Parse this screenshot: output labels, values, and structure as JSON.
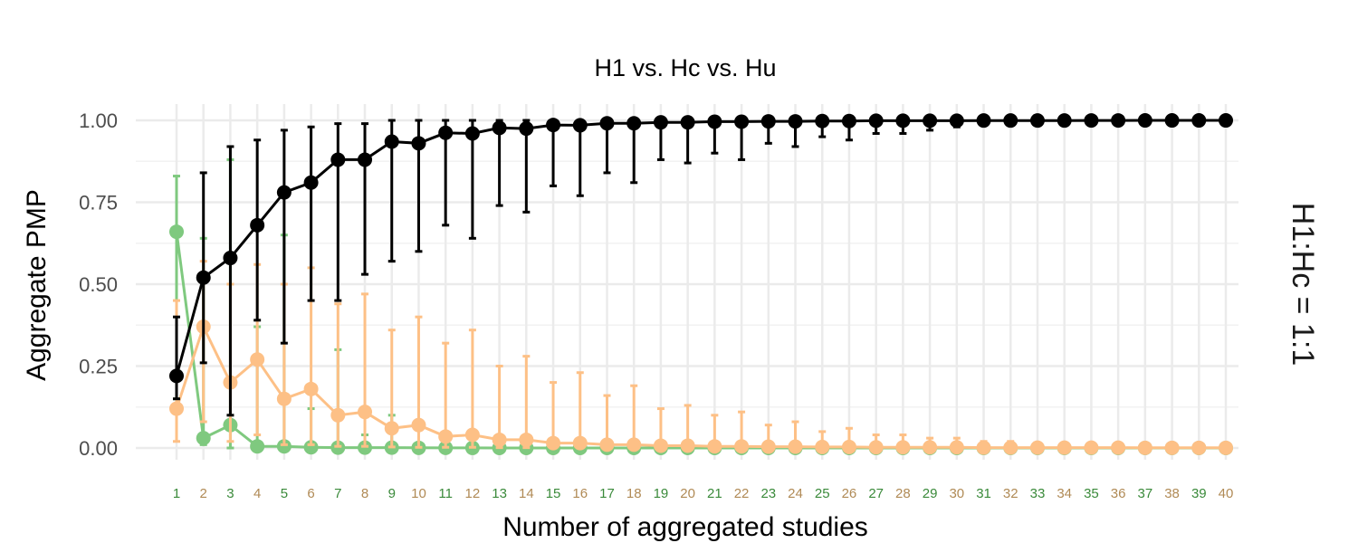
{
  "chart_data": {
    "type": "line",
    "title": "H1 vs. Hc vs. Hu",
    "xlabel": "Number of aggregated studies",
    "ylabel": "Aggregate PMP",
    "facet_label": "H1:Hc = 1:1",
    "ylim": [
      0,
      1
    ],
    "xlim": [
      1,
      40
    ],
    "grid": true,
    "legend": "none",
    "y_ticks": [
      "0.00",
      "0.25",
      "0.50",
      "0.75",
      "1.00"
    ],
    "y_tick_values": [
      0,
      0.25,
      0.5,
      0.75,
      1.0
    ],
    "x": [
      "1",
      "2",
      "3",
      "4",
      "5",
      "6",
      "7",
      "8",
      "9",
      "10",
      "11",
      "12",
      "13",
      "14",
      "15",
      "16",
      "17",
      "18",
      "19",
      "20",
      "21",
      "22",
      "23",
      "24",
      "25",
      "26",
      "27",
      "28",
      "29",
      "30",
      "31",
      "32",
      "33",
      "34",
      "35",
      "36",
      "37",
      "38",
      "39",
      "40"
    ],
    "x_tick_colors": [
      "#3a8a3a",
      "#b08a55"
    ],
    "series": [
      {
        "color": "#7fc97f",
        "values": [
          0.66,
          0.03,
          0.07,
          0.005,
          0.005,
          0.002,
          0.001,
          0.001,
          0.001,
          0.0005,
          0.0003,
          0.0002,
          0.0001,
          0.0001,
          0,
          0,
          0,
          0,
          0,
          0,
          0,
          0,
          0,
          0,
          0,
          0,
          0,
          0,
          0,
          0,
          0,
          0,
          0,
          0,
          0,
          0,
          0,
          0,
          0,
          0
        ],
        "lower": [
          0.15,
          0.01,
          0.0,
          0.0,
          0.0,
          0.0,
          0.0,
          0.0,
          0.0,
          0,
          0,
          0,
          0,
          0,
          0,
          0,
          0,
          0,
          0,
          0,
          0,
          0,
          0,
          0,
          0,
          0,
          0,
          0,
          0,
          0,
          0,
          0,
          0,
          0,
          0,
          0,
          0,
          0,
          0,
          0
        ],
        "upper": [
          0.83,
          0.64,
          0.88,
          0.37,
          0.65,
          0.12,
          0.3,
          0.04,
          0.1,
          0.01,
          0.005,
          0.003,
          0.002,
          0.001,
          0.001,
          0.001,
          0,
          0,
          0,
          0,
          0,
          0,
          0,
          0,
          0,
          0,
          0,
          0,
          0,
          0,
          0,
          0,
          0,
          0,
          0,
          0,
          0,
          0,
          0,
          0
        ]
      },
      {
        "color": "#fdc086",
        "values": [
          0.12,
          0.37,
          0.2,
          0.27,
          0.15,
          0.18,
          0.1,
          0.11,
          0.06,
          0.07,
          0.035,
          0.04,
          0.025,
          0.025,
          0.015,
          0.015,
          0.01,
          0.01,
          0.007,
          0.007,
          0.005,
          0.005,
          0.004,
          0.004,
          0.003,
          0.003,
          0.002,
          0.002,
          0.002,
          0.002,
          0.001,
          0.001,
          0.001,
          0.001,
          0.001,
          0.001,
          0.0005,
          0.0005,
          0.0005,
          0.0005
        ],
        "lower": [
          0.02,
          0.08,
          0.02,
          0.04,
          0.01,
          0.01,
          0.005,
          0.005,
          0.003,
          0.002,
          0.002,
          0.002,
          0.001,
          0.001,
          0.001,
          0,
          0,
          0,
          0,
          0,
          0,
          0,
          0,
          0,
          0,
          0,
          0,
          0,
          0,
          0,
          0,
          0,
          0,
          0,
          0,
          0,
          0,
          0,
          0,
          0
        ],
        "upper": [
          0.45,
          0.57,
          0.5,
          0.56,
          0.5,
          0.55,
          0.44,
          0.47,
          0.36,
          0.4,
          0.32,
          0.36,
          0.25,
          0.28,
          0.2,
          0.23,
          0.16,
          0.19,
          0.12,
          0.13,
          0.1,
          0.11,
          0.07,
          0.08,
          0.05,
          0.06,
          0.04,
          0.04,
          0.03,
          0.03,
          0.02,
          0.02,
          0.015,
          0.015,
          0.01,
          0.01,
          0.008,
          0.008,
          0.005,
          0.005
        ]
      },
      {
        "color": "#000000",
        "values": [
          0.22,
          0.52,
          0.58,
          0.68,
          0.78,
          0.81,
          0.88,
          0.88,
          0.935,
          0.93,
          0.962,
          0.96,
          0.977,
          0.975,
          0.986,
          0.985,
          0.991,
          0.991,
          0.994,
          0.994,
          0.996,
          0.996,
          0.997,
          0.997,
          0.998,
          0.998,
          0.999,
          0.999,
          0.999,
          0.999,
          0.9995,
          0.9995,
          0.9995,
          0.9995,
          0.9998,
          0.9998,
          0.9999,
          0.9999,
          0.9999,
          0.9999
        ],
        "lower": [
          0.15,
          0.26,
          0.1,
          0.39,
          0.32,
          0.45,
          0.45,
          0.53,
          0.57,
          0.6,
          0.68,
          0.64,
          0.74,
          0.72,
          0.8,
          0.77,
          0.84,
          0.81,
          0.88,
          0.87,
          0.9,
          0.88,
          0.93,
          0.92,
          0.95,
          0.94,
          0.96,
          0.96,
          0.97,
          0.98,
          0.985,
          0.99,
          0.99,
          0.995,
          0.995,
          0.997,
          0.998,
          0.998,
          0.999,
          0.999
        ],
        "upper": [
          0.4,
          0.84,
          0.92,
          0.94,
          0.97,
          0.98,
          0.99,
          0.99,
          1.0,
          1.0,
          1.0,
          1.0,
          1.0,
          1.0,
          1.0,
          1.0,
          1.0,
          1.0,
          1.0,
          1.0,
          1.0,
          1.0,
          1.0,
          1.0,
          1.0,
          1.0,
          1.0,
          1.0,
          1.0,
          1.0,
          1.0,
          1.0,
          1.0,
          1.0,
          1.0,
          1.0,
          1.0,
          1.0,
          1.0,
          1.0
        ]
      }
    ]
  }
}
